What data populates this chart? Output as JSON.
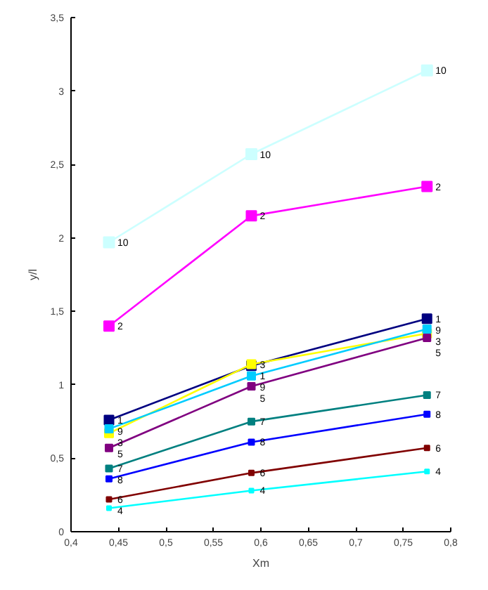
{
  "chart_data": {
    "type": "line",
    "xlabel": "Xm",
    "ylabel": "y/l",
    "x": [
      0.44,
      0.59,
      0.775
    ],
    "series": [
      {
        "name": "10",
        "color": "#ccffff",
        "values": [
          1.97,
          2.57,
          3.14
        ]
      },
      {
        "name": "2",
        "color": "#ff00ff",
        "values": [
          1.4,
          2.15,
          2.35
        ]
      },
      {
        "name": "1",
        "color": "#000080",
        "values": [
          0.76,
          1.13,
          1.45
        ]
      },
      {
        "name": "3",
        "color": "#ffff00",
        "values": [
          0.67,
          1.14,
          1.35
        ]
      },
      {
        "name": "9",
        "color": "#00ccff",
        "values": [
          0.7,
          1.06,
          1.38
        ]
      },
      {
        "name": "5",
        "color": "#800080",
        "values": [
          0.57,
          0.99,
          1.32
        ]
      },
      {
        "name": "7",
        "color": "#008080",
        "values": [
          0.43,
          0.75,
          0.93
        ]
      },
      {
        "name": "8",
        "color": "#0000ff",
        "values": [
          0.36,
          0.61,
          0.8
        ]
      },
      {
        "name": "6",
        "color": "#800000",
        "values": [
          0.22,
          0.4,
          0.57
        ]
      },
      {
        "name": "4",
        "color": "#00ffff",
        "values": [
          0.16,
          0.28,
          0.41
        ]
      }
    ],
    "xlim": [
      0.4,
      0.8
    ],
    "ylim": [
      0,
      3.5
    ],
    "xticks": [
      {
        "value": 0.4,
        "label": "0,4"
      },
      {
        "value": 0.45,
        "label": "0,45"
      },
      {
        "value": 0.5,
        "label": "0,5"
      },
      {
        "value": 0.55,
        "label": "0,55"
      },
      {
        "value": 0.6,
        "label": "0,6"
      },
      {
        "value": 0.65,
        "label": "0,65"
      },
      {
        "value": 0.7,
        "label": "0,7"
      },
      {
        "value": 0.75,
        "label": "0,75"
      },
      {
        "value": 0.8,
        "label": "0,8"
      }
    ],
    "yticks": [
      0,
      {
        "value": 0.5,
        "label": "0,5"
      },
      1,
      {
        "value": 1.5,
        "label": "1,5"
      },
      2,
      {
        "value": 2.5,
        "label": "2,5"
      },
      3,
      {
        "value": 3.5,
        "label": "3,5"
      }
    ],
    "marker": "square",
    "grid": false
  }
}
